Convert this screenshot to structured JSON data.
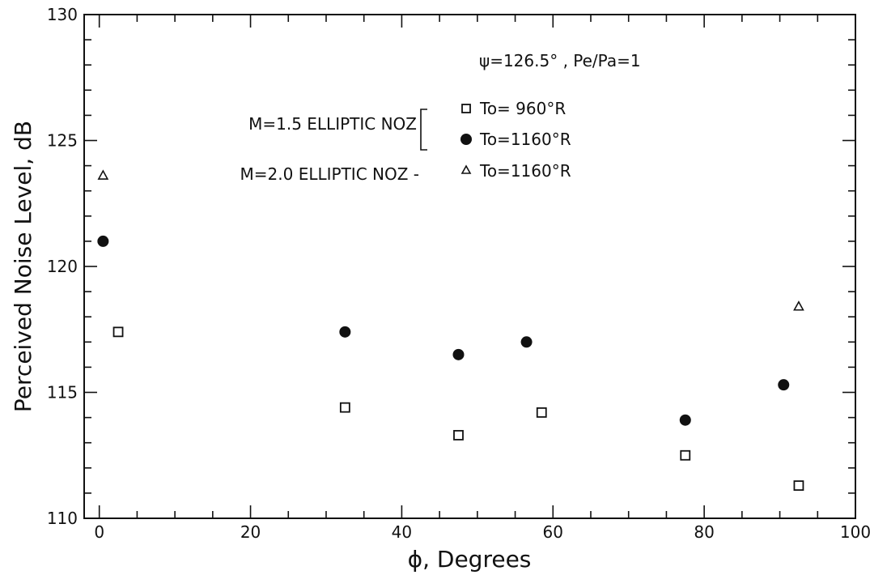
{
  "chart_data": {
    "type": "scatter",
    "title": "",
    "xlabel": "ϕ, Degrees",
    "ylabel": "Perceived Noise Level, dB",
    "xlim": [
      -2,
      100
    ],
    "ylim": [
      110,
      130
    ],
    "x_ticks": [
      0,
      20,
      40,
      60,
      80,
      100
    ],
    "y_ticks": [
      110,
      115,
      120,
      125,
      130
    ],
    "x_tick_labels": [
      "0",
      "20",
      "40",
      "60",
      "80",
      "100"
    ],
    "y_tick_labels": [
      "110",
      "115",
      "120",
      "125",
      "130"
    ],
    "grid": false,
    "legend_position": "top-right",
    "annotation": "ψ=126.5° , Pe/Pa=1",
    "legend_groups": [
      {
        "label": "M=1.5 ELLIPTIC NOZ",
        "entries": [
          0,
          1
        ]
      },
      {
        "label": "M=2.0 ELLIPTIC NOZ -",
        "entries": [
          2
        ]
      }
    ],
    "series": [
      {
        "name": "To= 960°R",
        "marker": "square-open",
        "x": [
          2.5,
          32.5,
          47.5,
          58.5,
          77.5,
          92.5
        ],
        "y": [
          117.4,
          114.4,
          113.3,
          114.2,
          112.5,
          111.3
        ]
      },
      {
        "name": "To=1160°R",
        "marker": "circle-filled",
        "x": [
          0.5,
          32.5,
          47.5,
          56.5,
          77.5,
          90.5
        ],
        "y": [
          121.0,
          117.4,
          116.5,
          117.0,
          113.9,
          115.3
        ]
      },
      {
        "name": "To=1160°R",
        "marker": "triangle-open",
        "x": [
          0.5,
          92.5
        ],
        "y": [
          123.6,
          118.4
        ]
      }
    ]
  }
}
